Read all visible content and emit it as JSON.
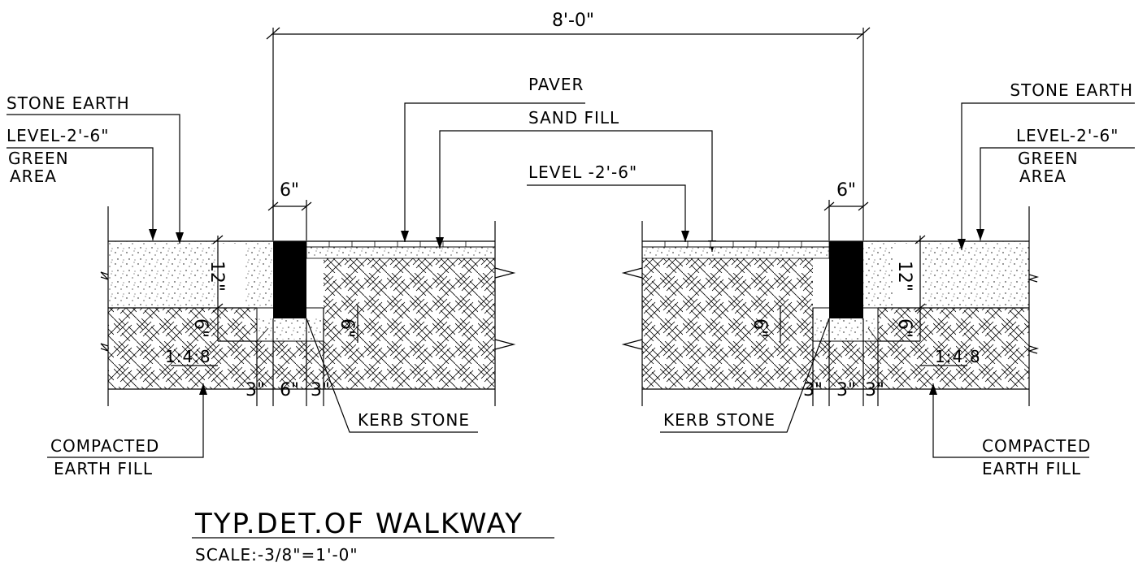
{
  "labels": {
    "overall_width": "8'-0\"",
    "left_stone_earth": "STONE EARTH",
    "left_level": "LEVEL-2'-6\"",
    "left_green": "GREEN",
    "left_area": "AREA",
    "paver": "PAVER",
    "sand_fill": "SAND FILL",
    "mid_level": "LEVEL -2'-6\"",
    "right_stone_earth": "STONE EARTH",
    "right_level": "LEVEL-2'-6\"",
    "right_green": "GREEN",
    "right_area": "AREA",
    "left_kerb": "KERB STONE",
    "right_kerb": "KERB STONE",
    "left_compacted": "COMPACTED",
    "left_earth_fill": "EARTH FILL",
    "right_compacted": "COMPACTED",
    "right_earth_fill": "EARTH FILL",
    "left_mix": "1:4:8",
    "right_mix": "1:4:8"
  },
  "dimensions": {
    "left_kerb_width": "6\"",
    "right_kerb_width": "6\"",
    "left_height_12": "12\"",
    "right_height_12": "12\"",
    "left_6_a": "6\"",
    "left_6_b": "6\"",
    "right_6_a": "6\"",
    "right_6_b": "6\"",
    "left_bottom_3a": "3\"",
    "left_bottom_6": "6\"",
    "left_bottom_3b": "3\"",
    "right_bottom_3a": "3\"",
    "right_bottom_3b": "3\"",
    "right_bottom_3c": "3\""
  },
  "title": "TYP.DET.OF WALKWAY",
  "scale": "SCALE:-3/8\"=1'-0\""
}
